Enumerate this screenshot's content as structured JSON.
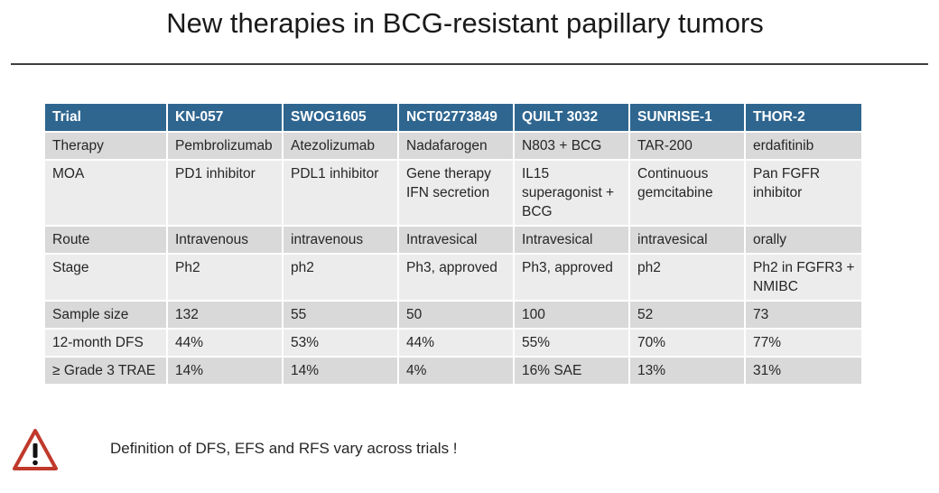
{
  "slide": {
    "title": "New therapies in BCG-resistant papillary tumors",
    "footnote": "Definition of DFS, EFS and RFS vary across trials !",
    "footnote_icon": "warning-triangle-icon"
  },
  "colors": {
    "header_bg": "#2f6690",
    "row_dark": "#d9d9d9",
    "row_light": "#ececec",
    "warning_red": "#c0392b"
  },
  "table": {
    "headers": [
      "Trial",
      "KN-057",
      "SWOG1605",
      "NCT02773849",
      "QUILT 3032",
      "SUNRISE-1",
      "THOR-2"
    ],
    "rows": [
      [
        "Therapy",
        "Pembrolizumab",
        "Atezolizumab",
        "Nadafarogen",
        "N803 + BCG",
        "TAR-200",
        "erdafitinib"
      ],
      [
        "MOA",
        "PD1 inhibitor",
        "PDL1 inhibitor",
        "Gene therapy IFN secretion",
        "IL15 superagonist + BCG",
        "Continuous gemcitabine",
        "Pan FGFR inhibitor"
      ],
      [
        "Route",
        "Intravenous",
        "intravenous",
        "Intravesical",
        "Intravesical",
        "intravesical",
        "orally"
      ],
      [
        "Stage",
        "Ph2",
        "ph2",
        "Ph3, approved",
        "Ph3, approved",
        "ph2",
        "Ph2 in FGFR3 + NMIBC"
      ],
      [
        "Sample size",
        "132",
        "55",
        "50",
        "100",
        "52",
        "73"
      ],
      [
        "12-month DFS",
        "44%",
        "53%",
        "44%",
        "55%",
        "70%",
        "77%"
      ],
      [
        "≥ Grade 3 TRAE",
        "14%",
        "14%",
        "4%",
        "16% SAE",
        "13%",
        "31%"
      ]
    ]
  }
}
